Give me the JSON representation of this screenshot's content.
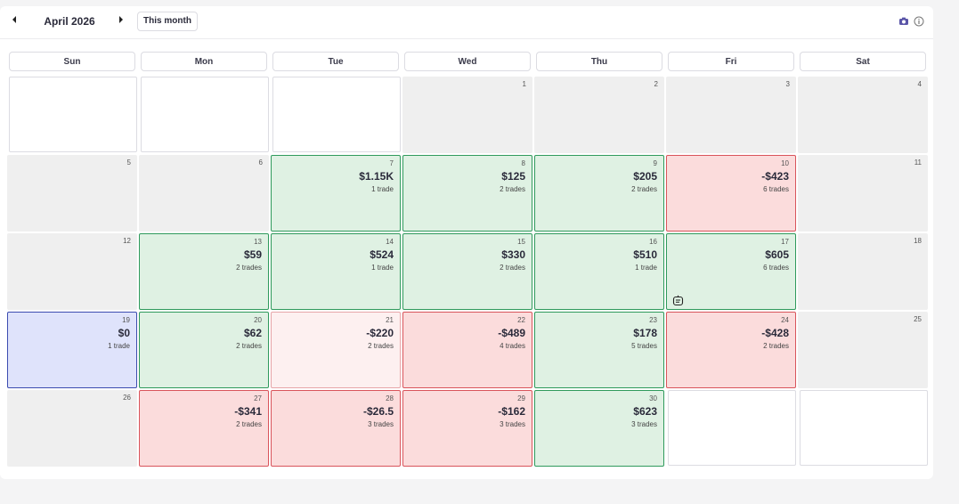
{
  "header": {
    "month_label": "April 2026",
    "prev_icon": "chevron-left-icon",
    "next_icon": "chevron-right-icon",
    "this_month_label": "This month",
    "right_icons": [
      "camera-icon",
      "info-icon"
    ]
  },
  "weekdays": [
    "Sun",
    "Mon",
    "Tue",
    "Wed",
    "Thu",
    "Fri",
    "Sat"
  ],
  "days": [
    {
      "day": "",
      "status": "empty"
    },
    {
      "day": "",
      "status": "empty"
    },
    {
      "day": "",
      "status": "empty"
    },
    {
      "day": "1",
      "status": "neutral"
    },
    {
      "day": "2",
      "status": "neutral"
    },
    {
      "day": "3",
      "status": "neutral"
    },
    {
      "day": "4",
      "status": "neutral"
    },
    {
      "day": "5",
      "status": "neutral"
    },
    {
      "day": "6",
      "status": "neutral"
    },
    {
      "day": "7",
      "pnl": "$1.15K",
      "trades": "1 trade",
      "status": "win"
    },
    {
      "day": "8",
      "pnl": "$125",
      "trades": "2 trades",
      "status": "win"
    },
    {
      "day": "9",
      "pnl": "$205",
      "trades": "2 trades",
      "status": "win"
    },
    {
      "day": "10",
      "pnl": "-$423",
      "trades": "6 trades",
      "status": "loss"
    },
    {
      "day": "11",
      "status": "neutral"
    },
    {
      "day": "12",
      "status": "neutral"
    },
    {
      "day": "13",
      "pnl": "$59",
      "trades": "2 trades",
      "status": "win"
    },
    {
      "day": "14",
      "pnl": "$524",
      "trades": "1 trade",
      "status": "win"
    },
    {
      "day": "15",
      "pnl": "$330",
      "trades": "2 trades",
      "status": "win"
    },
    {
      "day": "16",
      "pnl": "$510",
      "trades": "1 trade",
      "status": "win"
    },
    {
      "day": "17",
      "pnl": "$605",
      "trades": "6 trades",
      "status": "win",
      "note_icon": "robot-note-icon"
    },
    {
      "day": "18",
      "status": "neutral"
    },
    {
      "day": "19",
      "pnl": "$0",
      "trades": "1 trade",
      "status": "today"
    },
    {
      "day": "20",
      "pnl": "$62",
      "trades": "2 trades",
      "status": "win"
    },
    {
      "day": "21",
      "pnl": "-$220",
      "trades": "2 trades",
      "status": "lightloss"
    },
    {
      "day": "22",
      "pnl": "-$489",
      "trades": "4 trades",
      "status": "loss"
    },
    {
      "day": "23",
      "pnl": "$178",
      "trades": "5 trades",
      "status": "win"
    },
    {
      "day": "24",
      "pnl": "-$428",
      "trades": "2 trades",
      "status": "loss"
    },
    {
      "day": "25",
      "status": "neutral"
    },
    {
      "day": "26",
      "status": "neutral"
    },
    {
      "day": "27",
      "pnl": "-$341",
      "trades": "2 trades",
      "status": "loss"
    },
    {
      "day": "28",
      "pnl": "-$26.5",
      "trades": "3 trades",
      "status": "loss"
    },
    {
      "day": "29",
      "pnl": "-$162",
      "trades": "3 trades",
      "status": "loss"
    },
    {
      "day": "30",
      "pnl": "$623",
      "trades": "3 trades",
      "status": "win"
    },
    {
      "day": "",
      "status": "empty"
    },
    {
      "day": "",
      "status": "empty"
    }
  ],
  "colors": {
    "win_bg": "#dff1e3",
    "win_border": "#2f9a5c",
    "loss_bg": "#fbdcdc",
    "loss_border": "#d9545b",
    "today_bg": "#dfe3fb",
    "today_border": "#3c4cb0",
    "neutral_bg": "#efefef"
  }
}
